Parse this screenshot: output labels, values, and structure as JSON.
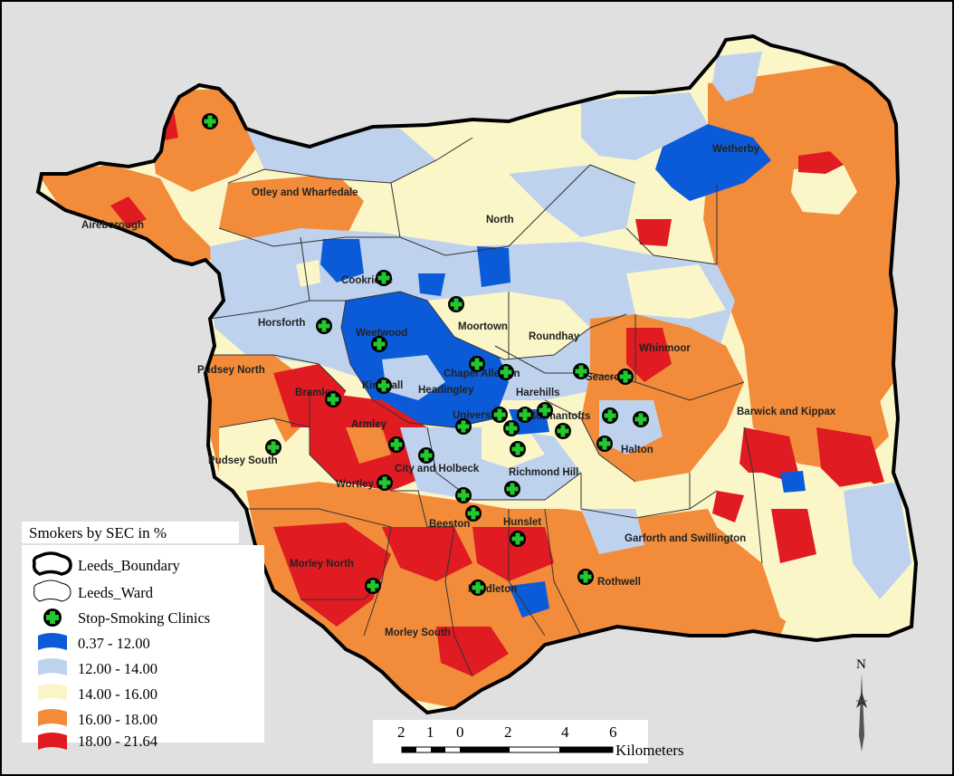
{
  "map": {
    "wards": [
      "Otley and Wharfedale",
      "Aireborough",
      "North",
      "Wetherby",
      "Cookridge",
      "Horsforth",
      "Weetwood",
      "Moortown",
      "Roundhay",
      "Whinmoor",
      "Pudsey North",
      "Chapel Allerton",
      "Headingley",
      "Kirkstall",
      "Seacroft",
      "Bramley",
      "Harehills",
      "University",
      "Burmantofts",
      "Barwick and Kippax",
      "Armley",
      "Halton",
      "Pudsey South",
      "City and Holbeck",
      "Richmond Hill",
      "Wortley",
      "Beeston",
      "Hunslet",
      "Garforth and Swillington",
      "Morley North",
      "Middleton",
      "Rothwell",
      "Morley South"
    ],
    "class_colors": [
      "#0b5bd8",
      "#bed2ee",
      "#fbf6c8",
      "#f28c3a",
      "#e01b22"
    ],
    "clinic_color": "#22c82e"
  },
  "legend": {
    "title": "Smokers by SEC in %",
    "boundary_label": "Leeds_Boundary",
    "ward_label": "Leeds_Ward",
    "clinics_label": "Stop-Smoking Clinics",
    "classes": [
      {
        "label": "0.37 - 12.00",
        "color": "#0b5bd8"
      },
      {
        "label": "12.00 - 14.00",
        "color": "#bed2ee"
      },
      {
        "label": "14.00 - 16.00",
        "color": "#fbf6c8"
      },
      {
        "label": "16.00 - 18.00",
        "color": "#f28c3a"
      },
      {
        "label": "18.00 - 21.64",
        "color": "#e01b22"
      }
    ]
  },
  "scale_bar": {
    "ticks": [
      "2",
      "1",
      "0",
      "2",
      "4",
      "6"
    ],
    "unit": "Kilometers"
  },
  "north_arrow": {
    "label": "N"
  }
}
